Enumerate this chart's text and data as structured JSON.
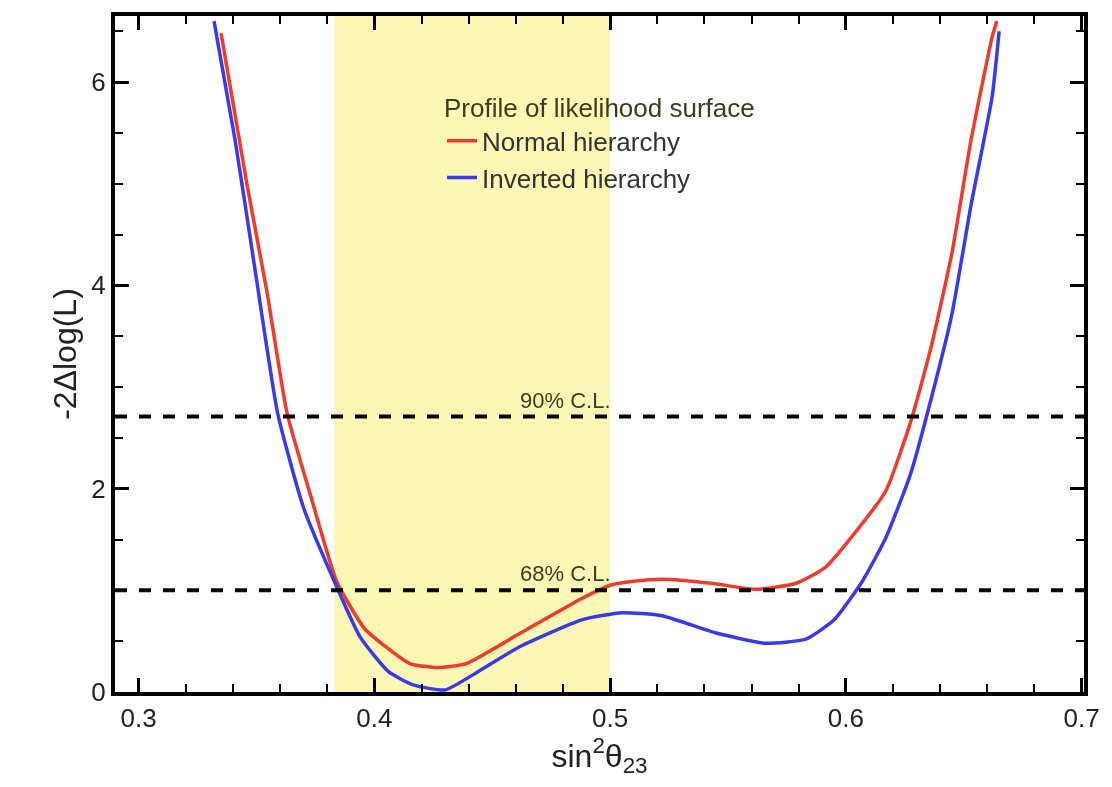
{
  "chart_data": {
    "type": "line",
    "xlabel": "sin$^{2}$θ$_{23}$",
    "ylabel": "-2Δlog(L)",
    "legend_title": "Profile of likelihood surface",
    "legend": "top",
    "xlim": [
      0.29,
      0.701
    ],
    "xticks": [
      0.3,
      0.4,
      0.5,
      0.6,
      0.7
    ],
    "ylim": [
      0,
      6.65
    ],
    "yticks": [
      0,
      2,
      4,
      6
    ],
    "grid": false,
    "marker": "none",
    "line_style": "solid",
    "series": [
      {
        "name": "Normal hierarchy",
        "color": "#f03a2a",
        "x": [
          0.335,
          0.346,
          0.3545,
          0.363,
          0.3735,
          0.384,
          0.396,
          0.415,
          0.427,
          0.439,
          0.462,
          0.488,
          0.5,
          0.51,
          0.522,
          0.543,
          0.562,
          0.579,
          0.591,
          0.605,
          0.617,
          0.6275,
          0.636,
          0.645,
          0.653,
          0.662,
          0.664
        ],
        "values": [
          6.48,
          4.99,
          3.93,
          2.74,
          1.89,
          1.09,
          0.62,
          0.28,
          0.24,
          0.28,
          0.58,
          0.92,
          1.05,
          1.09,
          1.11,
          1.07,
          1.01,
          1.07,
          1.22,
          1.6,
          1.98,
          2.66,
          3.38,
          4.32,
          5.42,
          6.44,
          6.6
        ]
      },
      {
        "name": "Inverted hierarchy",
        "color": "#3a3ae8",
        "x": [
          0.332,
          0.341,
          0.3495,
          0.359,
          0.37,
          0.383,
          0.394,
          0.406,
          0.4165,
          0.43,
          0.444,
          0.462,
          0.488,
          0.505,
          0.522,
          0.545,
          0.5655,
          0.583,
          0.595,
          0.607,
          0.617,
          0.6275,
          0.636,
          0.645,
          0.653,
          0.662,
          0.665
        ],
        "values": [
          6.6,
          5.42,
          4.14,
          2.74,
          1.81,
          1.09,
          0.54,
          0.2,
          0.07,
          0.02,
          0.2,
          0.45,
          0.71,
          0.78,
          0.75,
          0.58,
          0.48,
          0.52,
          0.71,
          1.09,
          1.52,
          2.15,
          2.87,
          3.72,
          4.78,
          5.85,
          6.5
        ]
      }
    ],
    "ref_lines": [
      {
        "axis": "y",
        "value": 2.71,
        "label": "90% C.L.",
        "color": "#000000",
        "line_style": "dashed"
      },
      {
        "axis": "y",
        "value": 1,
        "label": "68% C.L.",
        "color": "#000000",
        "line_style": "dashed"
      }
    ],
    "bands": [
      {
        "axis": "x",
        "from": 0.383,
        "to": 0.5,
        "color": "#fbf7b4"
      }
    ]
  }
}
